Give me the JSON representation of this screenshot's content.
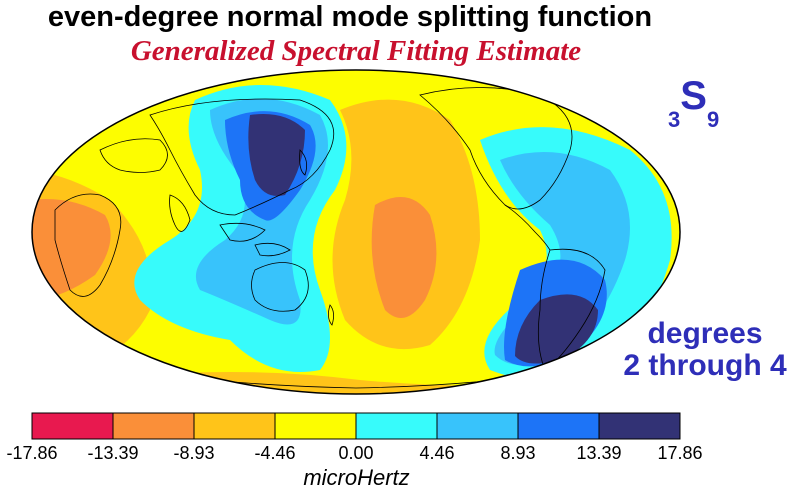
{
  "title": "even-degree normal mode splitting function",
  "subtitle": "Generalized Spectral Fitting Estimate",
  "mode_label": {
    "prefix": "3",
    "letter": "S",
    "suffix": "9"
  },
  "degrees_label": {
    "line1": "degrees",
    "line2": "2 through 4"
  },
  "colorbar": {
    "unit": "microHertz",
    "ticks": [
      "-17.86",
      "-13.39",
      "-8.93",
      "-4.46",
      "0.00",
      "4.46",
      "8.93",
      "13.39",
      "17.86"
    ],
    "colors": [
      "#e8194f",
      "#fa8f39",
      "#ffc419",
      "#fdfd00",
      "#37fbfb",
      "#38c3fb",
      "#1d74f7",
      "#323275"
    ]
  },
  "colors": {
    "title": "#000000",
    "subtitle": "#c8102e",
    "annotation": "#2e2eb8",
    "coastline": "#000000"
  }
}
